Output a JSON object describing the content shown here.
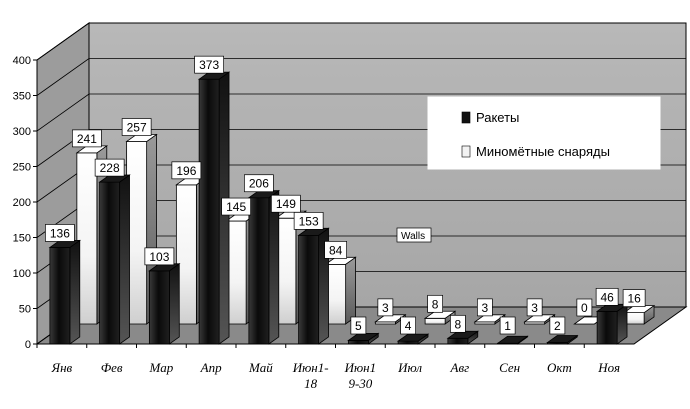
{
  "chart_data": {
    "type": "bar",
    "style": "3d-clustered-column",
    "categories": [
      "Янв",
      "Фев",
      "Мар",
      "Апр",
      "Май",
      "Июн1-18",
      "Июн19-30",
      "Июл",
      "Авг",
      "Сен",
      "Окт",
      "Ноя"
    ],
    "category_lines": [
      [
        "Янв"
      ],
      [
        "Фев"
      ],
      [
        "Мар"
      ],
      [
        "Апр"
      ],
      [
        "Май"
      ],
      [
        "Июн1-",
        "18"
      ],
      [
        "Июн1",
        "9-30"
      ],
      [
        "Июл"
      ],
      [
        "Авг"
      ],
      [
        "Сен"
      ],
      [
        "Окт"
      ],
      [
        "Ноя"
      ]
    ],
    "series": [
      {
        "name": "Ракеты",
        "values": [
          136,
          228,
          103,
          373,
          206,
          153,
          5,
          4,
          8,
          1,
          2,
          46
        ],
        "color": "#111111"
      },
      {
        "name": "Минометные снаряды",
        "values": [
          241,
          257,
          196,
          145,
          149,
          84,
          3,
          8,
          3,
          3,
          0,
          16
        ],
        "color": "#f2f2f2"
      }
    ],
    "yticks": [
      0,
      50,
      100,
      150,
      200,
      250,
      300,
      350,
      400
    ],
    "ylim": [
      0,
      400
    ],
    "grid": true,
    "legend_position": "right",
    "walls_tooltip": "Walls",
    "title": "",
    "xlabel": "",
    "ylabel": ""
  },
  "legend": {
    "items": [
      {
        "label": "Ракеты"
      },
      {
        "label": "Миномётные снаряды"
      }
    ]
  },
  "walls_label": "Walls"
}
